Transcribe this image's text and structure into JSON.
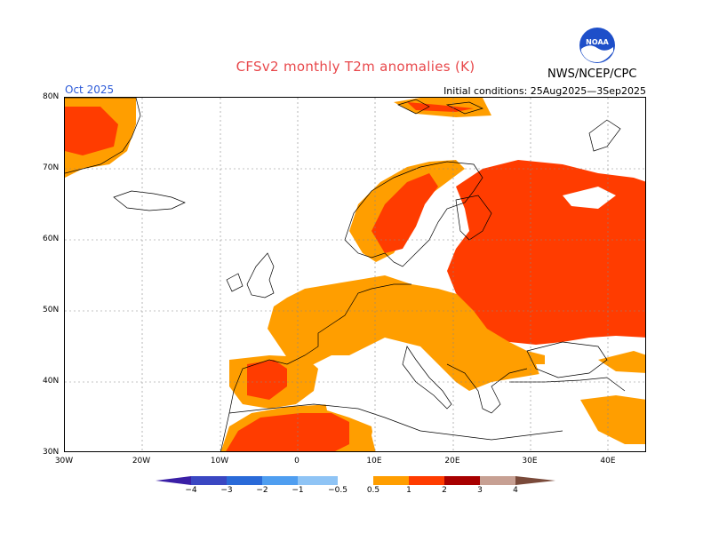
{
  "header": {
    "title": "CFSv2 monthly T2m anomalies (K)",
    "month": "Oct 2025",
    "initial_conditions": "Initial conditions: 25Aug2025—3Sep2025",
    "agency": "NWS/NCEP/CPC",
    "logo_text": "NOAA"
  },
  "axes": {
    "lat_labels": [
      "80N",
      "70N",
      "60N",
      "50N",
      "40N",
      "30N"
    ],
    "lon_labels": [
      "30W",
      "20W",
      "10W",
      "0",
      "10E",
      "20E",
      "30E",
      "40E"
    ]
  },
  "legend": {
    "tick_labels": [
      "−4",
      "−3",
      "−2",
      "−1",
      "−0.5",
      "0.5",
      "1",
      "2",
      "3",
      "4"
    ],
    "colors": {
      "lt_-4": "#3a1fa6",
      "-4_-3": "#2a4ed0",
      "-3_-2": "#2f6fe0",
      "-2_-1": "#4f9ef0",
      "-1_-0.5": "#8fc4f5",
      "-0.5_0.5": "#ffffff",
      "0.5_1": "#ff9e00",
      "1_2": "#ff3c00",
      "2_3": "#a80000",
      "3_4": "#c7a093",
      "gt_4": "#7a4a3a"
    }
  },
  "map": {
    "region": "Europe",
    "lon_range": [
      -30,
      45
    ],
    "lat_range": [
      30,
      80
    ],
    "grid": true
  }
}
